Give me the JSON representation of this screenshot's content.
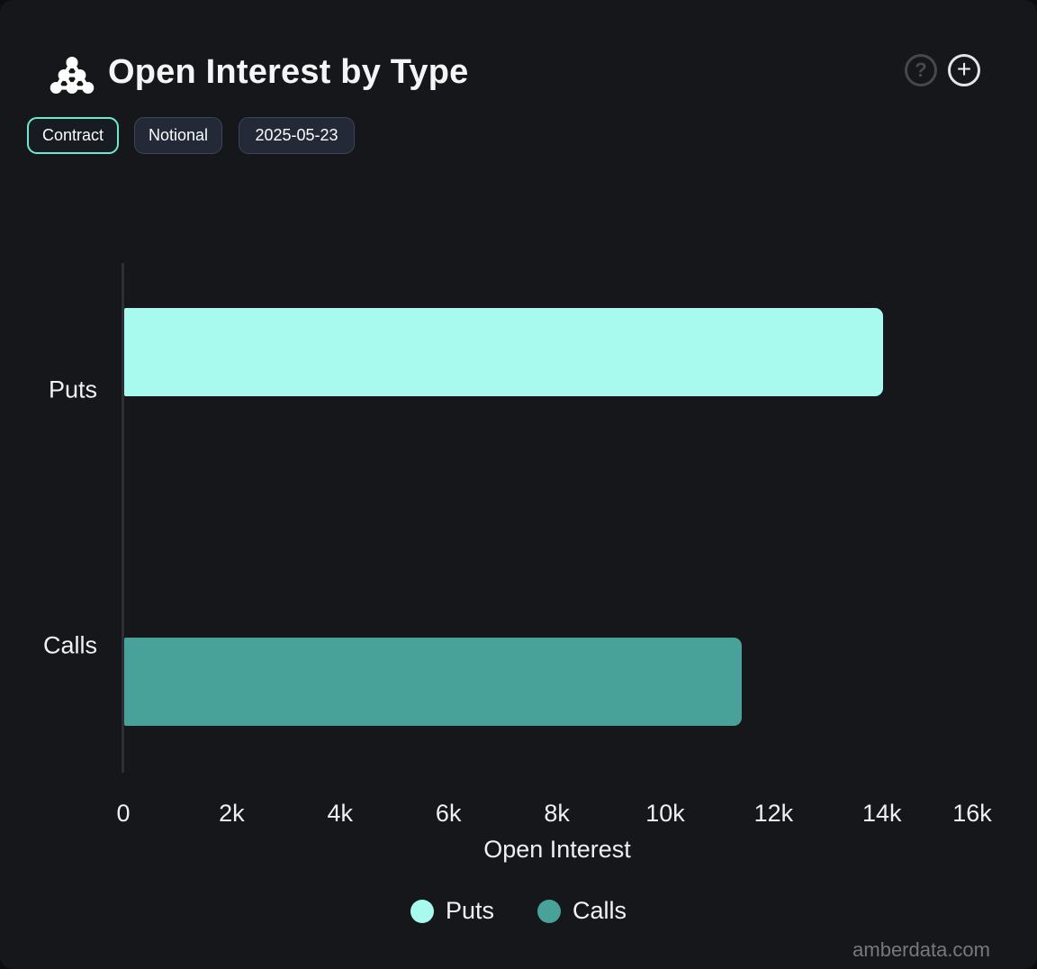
{
  "header": {
    "title": "Open Interest by Type"
  },
  "icons": {
    "help_glyph": "?",
    "add_glyph": "+"
  },
  "toolbar": {
    "buttons": [
      {
        "label": "Contract",
        "active": true
      },
      {
        "label": "Notional",
        "active": false
      },
      {
        "label": "2025-05-23",
        "active": false
      }
    ]
  },
  "chart_data": {
    "type": "bar",
    "orientation": "horizontal",
    "title": "Open Interest by Type",
    "categories": [
      "Puts",
      "Calls"
    ],
    "values": [
      14000,
      11400
    ],
    "bar_colors": [
      "#a9faee",
      "#49a29a"
    ],
    "xlabel": "Open Interest",
    "xlim": [
      0,
      16000
    ],
    "x_ticks": [
      0,
      2000,
      4000,
      6000,
      8000,
      10000,
      12000,
      14000,
      16000
    ],
    "x_tick_labels": [
      "0",
      "2k",
      "4k",
      "6k",
      "8k",
      "10k",
      "12k",
      "14k",
      "16k"
    ],
    "grid": false,
    "legend_position": "bottom",
    "legend": [
      {
        "label": "Puts",
        "color": "#a9faee"
      },
      {
        "label": "Calls",
        "color": "#49a29a"
      }
    ]
  },
  "footer": {
    "watermark": "amberdata.com"
  },
  "colors": {
    "background": "#15171a",
    "accent_border": "#6fe8d2",
    "puts": "#a9faee",
    "calls": "#49a29a"
  }
}
